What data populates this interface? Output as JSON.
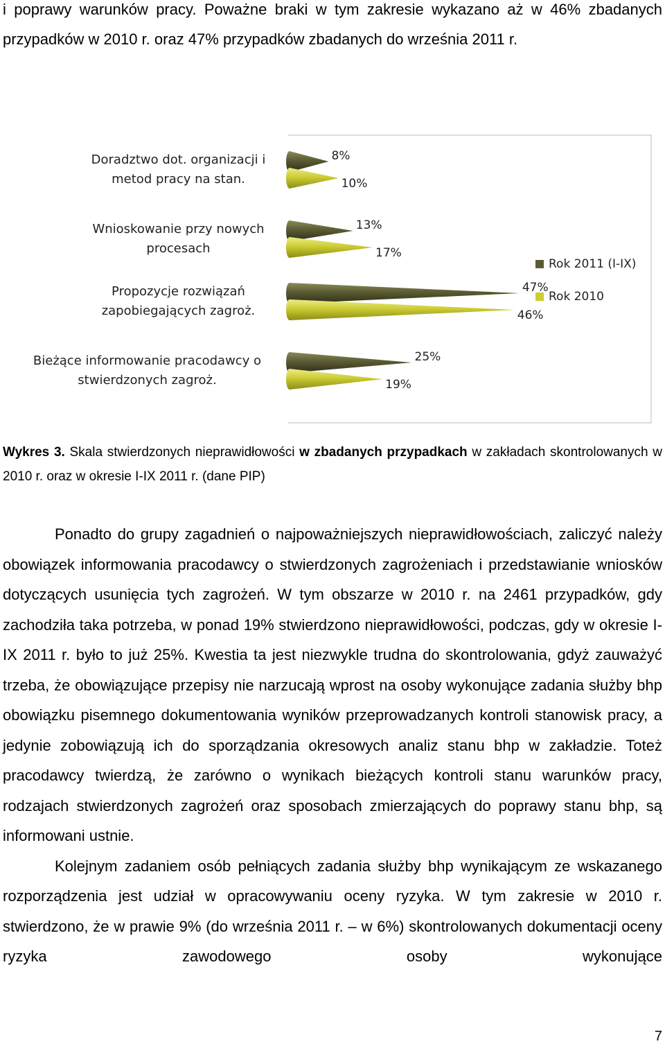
{
  "intro": "i poprawy warunków pracy. Poważne braki w tym zakresie wykazano aż w 46% zbadanych przypadków w 2010 r. oraz 47% przypadków zbadanych do września 2011 r.",
  "chart_data": {
    "type": "cone-bar",
    "categories": [
      "Doradztwo dot. organizacji i metod pracy na stan.",
      "Wnioskowanie przy nowych procesach",
      "Propozycje rozwiązań zapobiegających zagroż.",
      "Bieżące informowanie pracodawcy o stwierdzonych zagroż."
    ],
    "series": [
      {
        "name": "Rok 2011 (I-IX)",
        "color": "#5b5b33",
        "values": [
          8,
          13,
          47,
          25
        ],
        "value_labels": [
          "8%",
          "13%",
          "47%",
          "25%"
        ]
      },
      {
        "name": "Rok 2010",
        "color": "#cccc33",
        "values": [
          10,
          17,
          46,
          19
        ],
        "value_labels": [
          "10%",
          "17%",
          "46%",
          "19%"
        ]
      }
    ]
  },
  "caption": {
    "label": "Wykres 3.",
    "part1": "Skala stwierdzonych nieprawidłowości",
    "part2": "w zbadanych przypadkach",
    "part3": "w zakładach skontrolowanych w 2010 r. oraz w okresie I-IX 2011 r. (dane PIP)"
  },
  "paragraphs": [
    "Ponadto do grupy zagadnień o najpoważniejszych nieprawidłowościach, zaliczyć należy obowiązek informowania pracodawcy o stwierdzonych zagrożeniach i przedstawianie wniosków dotyczących usunięcia tych zagrożeń. W tym obszarze w 2010 r. na 2461 przypadków, gdy zachodziła taka potrzeba, w ponad 19% stwierdzono nieprawidłowości, podczas, gdy w okresie I-IX 2011 r. było to już 25%. Kwestia ta jest niezwykle trudna do skontrolowania, gdyż zauważyć trzeba, że obowiązujące przepisy nie narzucają wprost na osoby wykonujące zadania służby bhp obowiązku pisemnego dokumentowania wyników przeprowadzanych kontroli stanowisk pracy, a jedynie zobowiązują ich do sporządzania okresowych analiz stanu bhp w zakładzie. Toteż pracodawcy twierdzą, że zarówno o wynikach bieżących kontroli stanu warunków pracy, rodzajach stwierdzonych zagrożeń oraz sposobach zmierzających do poprawy stanu bhp, są informowani ustnie.",
    "Kolejnym zadaniem osób pełniących zadania służby bhp wynikającym ze wskazanego rozporządzenia jest udział w opracowywaniu oceny ryzyka. W tym zakresie w 2010 r. stwierdzono, że w prawie 9% (do września 2011 r. – w 6%) skontrolowanych dokumentacji oceny ryzyka zawodowego osoby wykonujące"
  ],
  "page_number": "7"
}
